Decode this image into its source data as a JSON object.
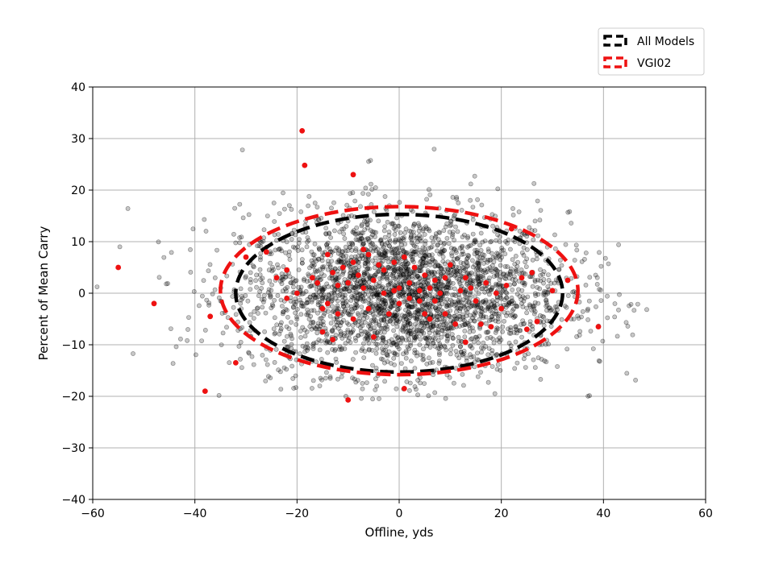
{
  "chart_data": {
    "type": "scatter",
    "xlabel": "Offline, yds",
    "ylabel": "Percent of Mean Carry",
    "xlim": [
      -60,
      60
    ],
    "ylim": [
      -40,
      40
    ],
    "xticks": [
      "−60",
      "−40",
      "−20",
      "0",
      "20",
      "40",
      "60"
    ],
    "yticks": [
      "−40",
      "−30",
      "−20",
      "−10",
      "0",
      "10",
      "20",
      "30",
      "40"
    ],
    "grid": true,
    "legend_position": "top-right",
    "legend": [
      {
        "label": "All Models",
        "color": "#000000"
      },
      {
        "label": "VGI02",
        "color": "#ee1111"
      }
    ],
    "ellipses": [
      {
        "name": "All Models",
        "center": [
          0,
          0
        ],
        "half_width": 32,
        "half_height": 15.3,
        "color": "#000000"
      },
      {
        "name": "VGI02",
        "center": [
          0,
          0.5
        ],
        "half_width": 35,
        "half_height": 16.3,
        "color": "#ee1111"
      }
    ],
    "all_models_points_summary": {
      "count_approx": 3000,
      "x_spread": [
        -60,
        51
      ],
      "y_spread": [
        -21,
        33.5
      ],
      "color": "#000000"
    },
    "vgi02_points": [
      [
        -55,
        5
      ],
      [
        -48,
        -2
      ],
      [
        -38,
        -19
      ],
      [
        -37,
        -4.5
      ],
      [
        -32,
        -13.5
      ],
      [
        -30,
        7
      ],
      [
        -26,
        8
      ],
      [
        -24,
        3
      ],
      [
        -22,
        4.5
      ],
      [
        -22,
        -1
      ],
      [
        -20,
        0
      ],
      [
        -19,
        31.5
      ],
      [
        -18.5,
        24.8
      ],
      [
        -17,
        3
      ],
      [
        -16,
        2
      ],
      [
        -15,
        -3
      ],
      [
        -15,
        -7.5
      ],
      [
        -14,
        7.5
      ],
      [
        -14,
        -2
      ],
      [
        -13,
        4
      ],
      [
        -13,
        -9
      ],
      [
        -12,
        1.5
      ],
      [
        -12,
        -4
      ],
      [
        -11,
        5
      ],
      [
        -10,
        -20.7
      ],
      [
        -10,
        2
      ],
      [
        -9,
        23
      ],
      [
        -9,
        6
      ],
      [
        -9,
        -5
      ],
      [
        -8,
        3.5
      ],
      [
        -7,
        1
      ],
      [
        -7,
        8.5
      ],
      [
        -6,
        7.5
      ],
      [
        -6,
        -3
      ],
      [
        -5,
        -8.5
      ],
      [
        -5,
        2.5
      ],
      [
        -4,
        5.5
      ],
      [
        -3,
        0
      ],
      [
        -3,
        4.5
      ],
      [
        -2,
        -4
      ],
      [
        -1,
        0.5
      ],
      [
        -1,
        6
      ],
      [
        0,
        1
      ],
      [
        0,
        -2
      ],
      [
        1,
        -18.5
      ],
      [
        1,
        7
      ],
      [
        2,
        2
      ],
      [
        2,
        -1
      ],
      [
        3,
        5
      ],
      [
        4,
        -1.5
      ],
      [
        4,
        0.5
      ],
      [
        5,
        -4
      ],
      [
        5,
        3.5
      ],
      [
        6,
        1
      ],
      [
        6,
        -5
      ],
      [
        7,
        -1.5
      ],
      [
        7,
        2.5
      ],
      [
        8,
        0
      ],
      [
        9,
        -4
      ],
      [
        9,
        3
      ],
      [
        10,
        5.5
      ],
      [
        11,
        -6
      ],
      [
        12,
        0.5
      ],
      [
        13,
        3
      ],
      [
        13,
        -9.5
      ],
      [
        14,
        1
      ],
      [
        15,
        -1.5
      ],
      [
        16,
        -6
      ],
      [
        17,
        2
      ],
      [
        18,
        -6.5
      ],
      [
        19,
        0
      ],
      [
        20,
        -3
      ],
      [
        21,
        1.5
      ],
      [
        22,
        12.5
      ],
      [
        24,
        3
      ],
      [
        25,
        -7
      ],
      [
        26,
        4
      ],
      [
        27,
        -5.5
      ],
      [
        30,
        0.5
      ],
      [
        33,
        2.5
      ],
      [
        39,
        -6.5
      ]
    ]
  }
}
